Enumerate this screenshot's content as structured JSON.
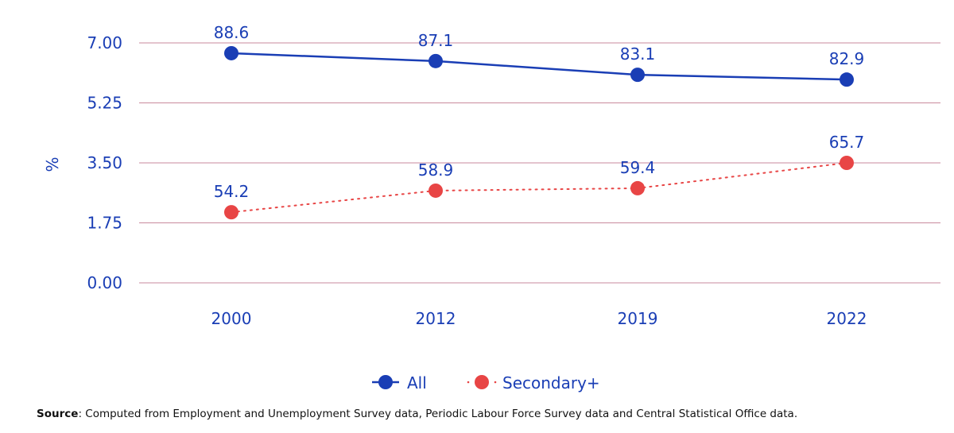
{
  "chart_data": {
    "type": "line",
    "title": "",
    "xlabel": "",
    "ylabel": "%",
    "ylim": [
      0,
      7
    ],
    "grid": true,
    "yticks": [
      "0.00",
      "1.75",
      "3.50",
      "5.25",
      "7.00"
    ],
    "categories": [
      "2000",
      "2012",
      "2019",
      "2022"
    ],
    "legend_position": "bottom-center",
    "series": [
      {
        "name": "All",
        "color": "#1a3eb5",
        "line_style": "solid",
        "labels": [
          "88.6",
          "87.1",
          "83.1",
          "82.9"
        ],
        "plotted": [
          6.7,
          6.47,
          6.07,
          5.93
        ]
      },
      {
        "name": "Secondary+",
        "color": "#e84545",
        "line_style": "dotted",
        "labels": [
          "54.2",
          "58.9",
          "59.4",
          "65.7"
        ],
        "plotted": [
          2.06,
          2.69,
          2.76,
          3.5
        ]
      }
    ]
  },
  "source": {
    "prefix": "Source",
    "text": ": Computed from Employment and Unemployment Survey data, Periodic Labour Force Survey data and Central Statistical Office data."
  },
  "colors": {
    "grid": "#c98a9d",
    "text": "#1a3eb5"
  }
}
